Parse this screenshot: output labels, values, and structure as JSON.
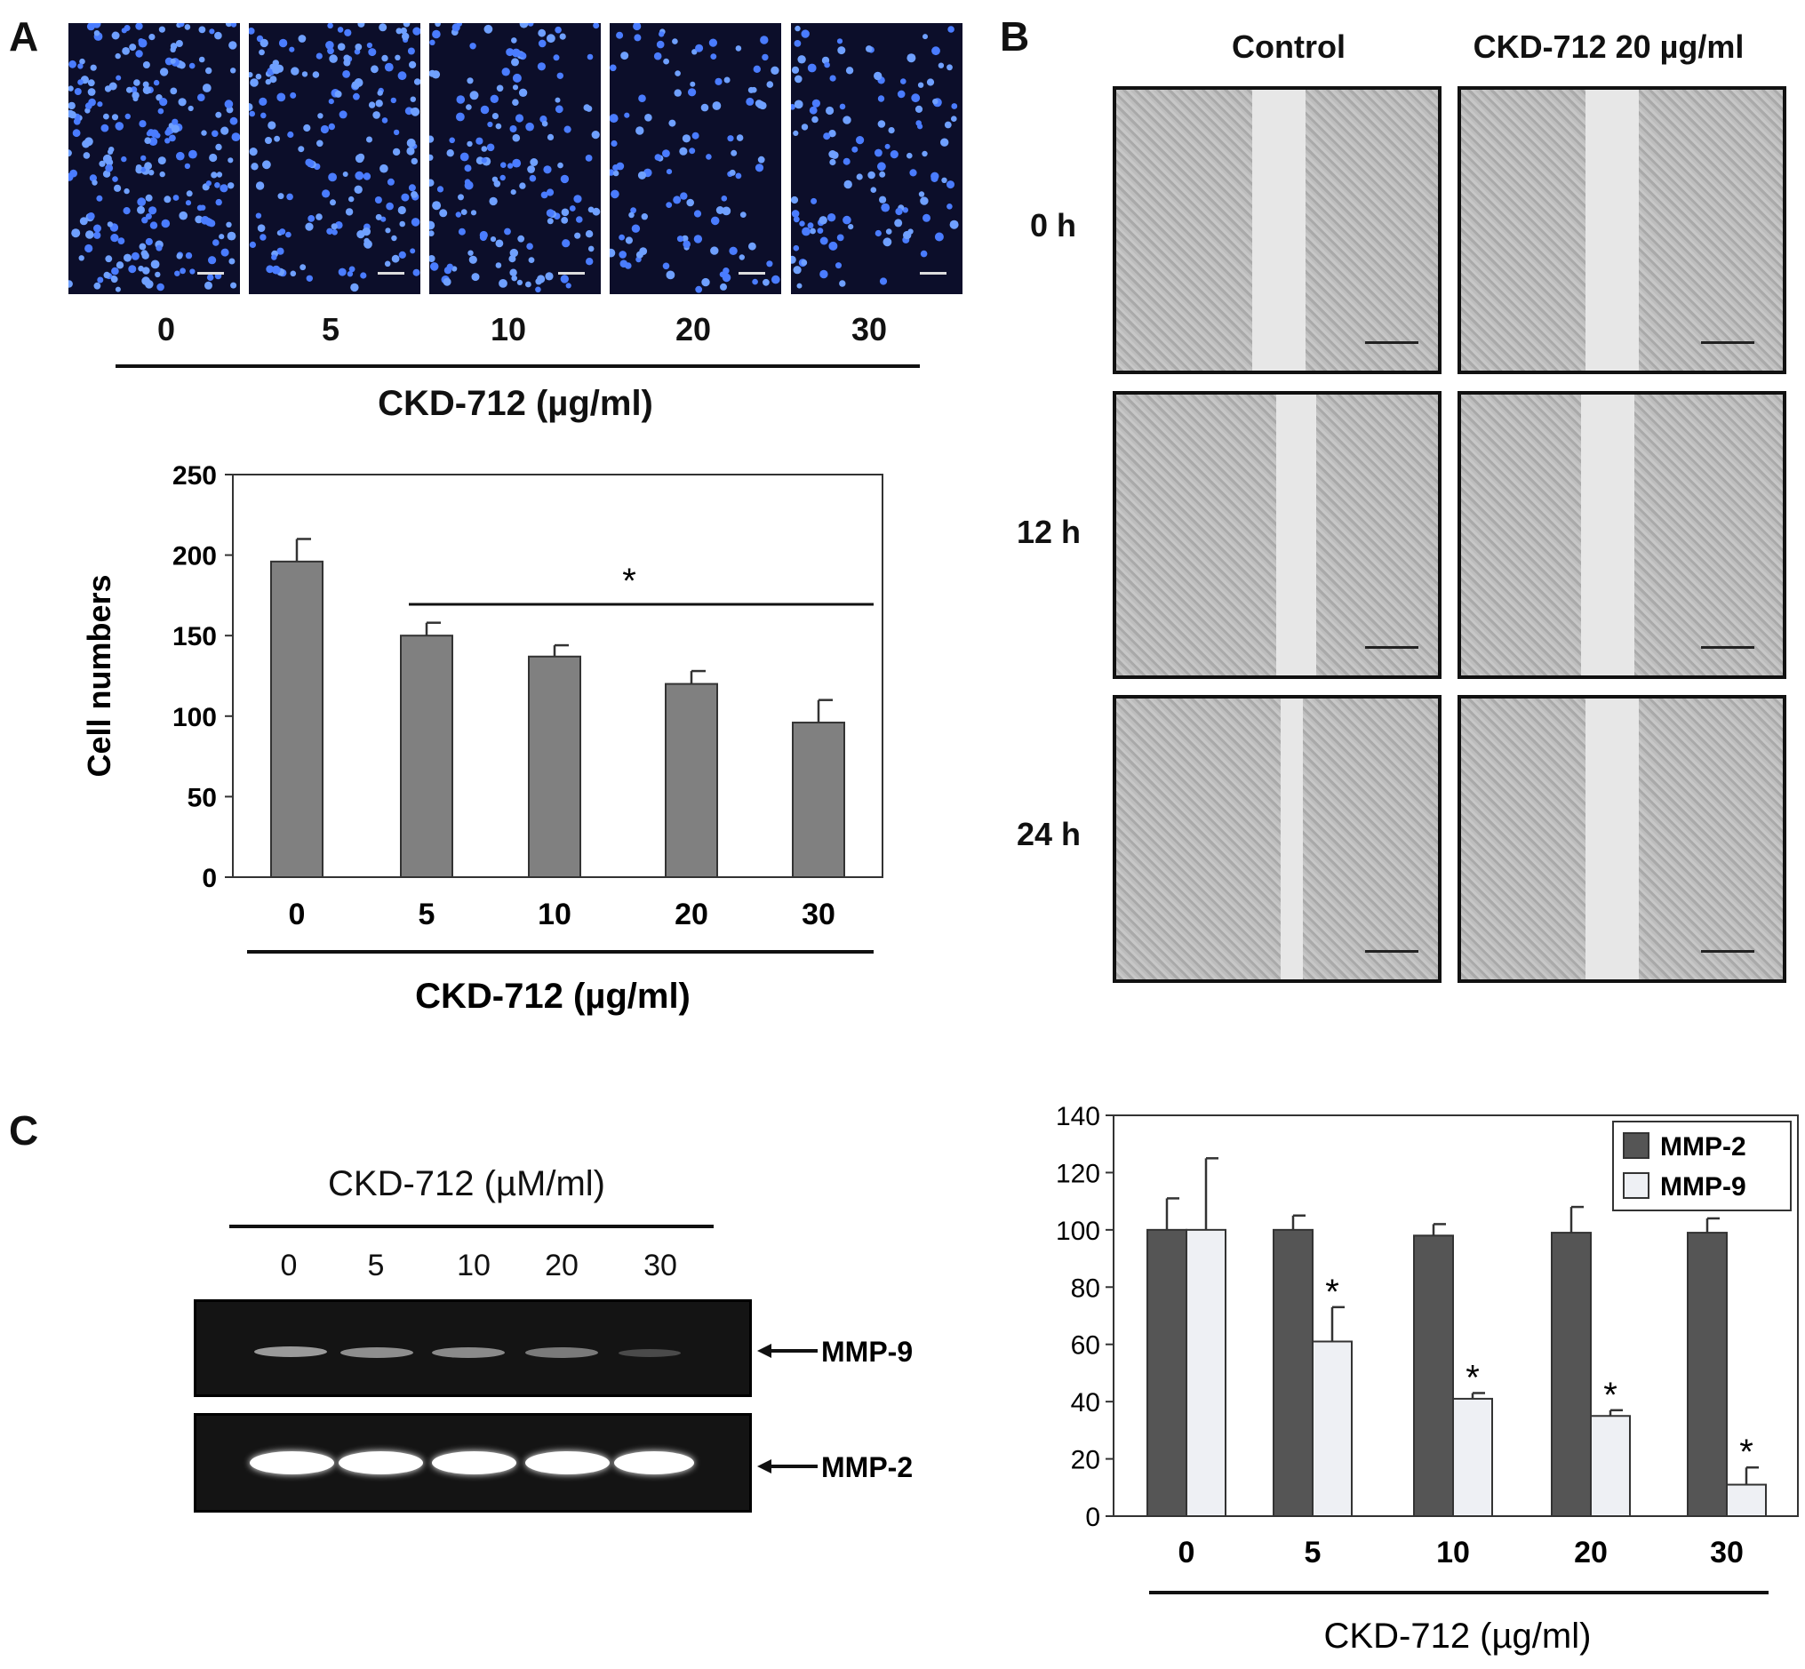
{
  "panels": {
    "A": {
      "letter": "A",
      "micrograph_labels": [
        "0",
        "5",
        "10",
        "20",
        "30"
      ],
      "micrograph_xlabel": "CKD-712 (µg/ml)"
    },
    "B": {
      "letter": "B",
      "col_headers": [
        "Control",
        "CKD-712 20 µg/ml"
      ],
      "row_labels": [
        "0 h",
        "12 h",
        "24 h"
      ]
    },
    "C": {
      "letter": "C",
      "gel_header": "CKD-712 (µM/ml)",
      "lane_labels": [
        "0",
        "5",
        "10",
        "20",
        "30"
      ],
      "band_labels": [
        "MMP-9",
        "MMP-2"
      ]
    }
  },
  "chart_data": [
    {
      "id": "panel-a-bar",
      "type": "bar",
      "categories": [
        "0",
        "5",
        "10",
        "20",
        "30"
      ],
      "values": [
        196,
        150,
        137,
        120,
        96
      ],
      "errors": [
        14,
        8,
        7,
        8,
        14
      ],
      "ylabel": "Cell numbers",
      "xlabel": "CKD-712 (µg/ml)",
      "ylim": [
        0,
        250
      ],
      "yticks": [
        0,
        50,
        100,
        150,
        200,
        250
      ],
      "annotation": "*",
      "annotation_span": [
        "5",
        "30"
      ],
      "bar_color": "#808080"
    },
    {
      "id": "panel-c-bar",
      "type": "bar",
      "categories": [
        "0",
        "5",
        "10",
        "20",
        "30"
      ],
      "series": [
        {
          "name": "MMP-2",
          "values": [
            100,
            100,
            98,
            99,
            99
          ],
          "errors": [
            11,
            5,
            4,
            9,
            5
          ],
          "color": "#555555"
        },
        {
          "name": "MMP-9",
          "values": [
            100,
            61,
            41,
            35,
            11
          ],
          "errors": [
            25,
            12,
            2,
            2,
            6
          ],
          "color": "#eef0f4"
        }
      ],
      "significance": [
        "",
        "*",
        "*",
        "*",
        "*"
      ],
      "xlabel": "CKD-712 (µg/ml)",
      "ylim": [
        0,
        140
      ],
      "yticks": [
        0,
        20,
        40,
        60,
        80,
        100,
        120,
        140
      ],
      "legend_position": "top-right"
    }
  ]
}
